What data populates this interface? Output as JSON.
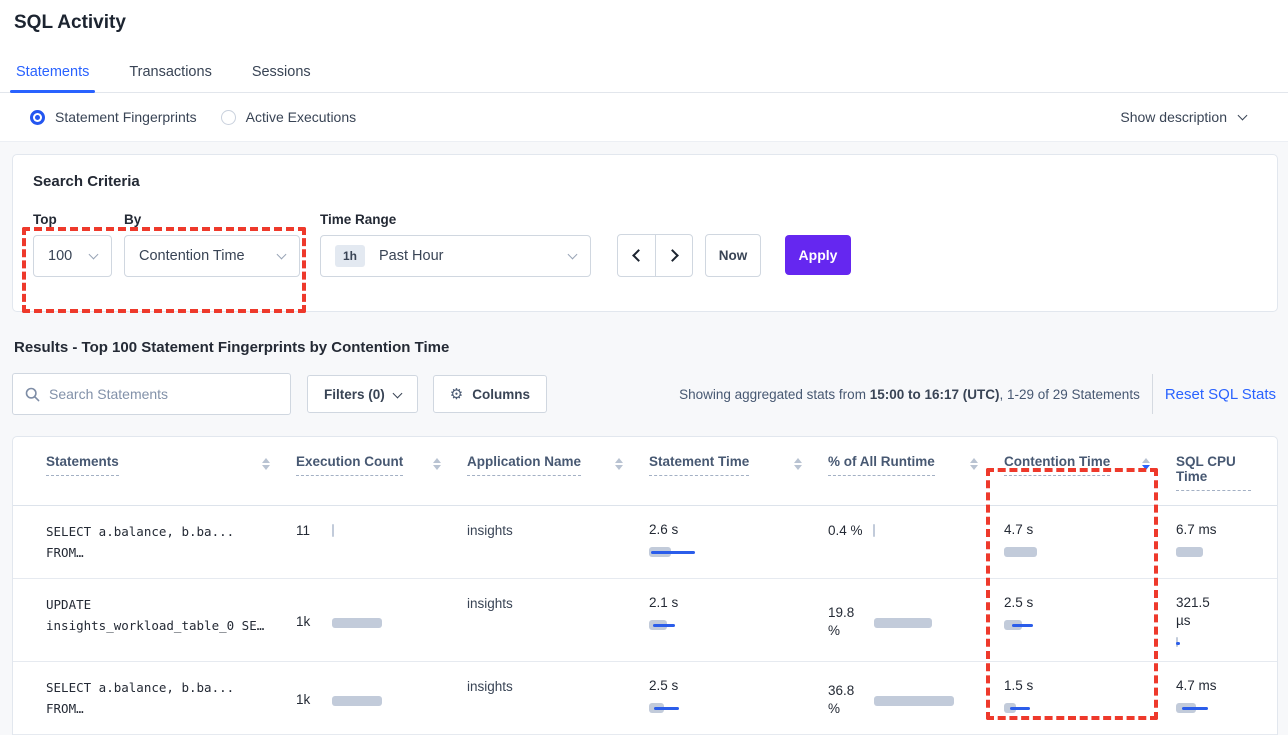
{
  "page_title": "SQL Activity",
  "tabs": [
    {
      "label": "Statements",
      "active": true
    },
    {
      "label": "Transactions",
      "active": false
    },
    {
      "label": "Sessions",
      "active": false
    }
  ],
  "toggle": {
    "options": [
      {
        "label": "Statement Fingerprints",
        "selected": true
      },
      {
        "label": "Active Executions",
        "selected": false
      }
    ],
    "show_description": "Show description"
  },
  "search_criteria": {
    "heading": "Search Criteria",
    "top": {
      "label": "Top",
      "value": "100"
    },
    "by": {
      "label": "By",
      "value": "Contention Time"
    },
    "time_range": {
      "label": "Time Range",
      "badge": "1h",
      "value": "Past Hour"
    },
    "now_label": "Now",
    "apply_label": "Apply"
  },
  "results": {
    "heading": "Results - Top 100 Statement Fingerprints by Contention Time",
    "search_placeholder": "Search Statements",
    "filters_label": "Filters (0)",
    "columns_label": "Columns",
    "showing_prefix": "Showing aggregated stats from ",
    "showing_bold": "15:00 to 16:17 (UTC)",
    "showing_suffix": ", 1-29 of 29 Statements",
    "reset_label": "Reset SQL Stats"
  },
  "table": {
    "headers": [
      {
        "label": "Statements"
      },
      {
        "label": "Execution Count"
      },
      {
        "label": "Application Name"
      },
      {
        "label": "Statement Time"
      },
      {
        "label": "% of All Runtime"
      },
      {
        "label": "Contention Time"
      },
      {
        "label": "SQL CPU Time"
      }
    ],
    "sorted_column": "Contention Time",
    "sort_direction": "desc",
    "rows": [
      {
        "stmt1": "SELECT a.balance, b.ba...",
        "stmt2": "FROM…",
        "exec": "11",
        "app": "insights",
        "stmt_time": "2.6 s",
        "pct": "0.4 %",
        "cont": "4.7 s",
        "cpu": "6.7 ms",
        "bars": {
          "exec": {
            "g": 2,
            "h": 13
          },
          "stmt": {
            "g": 22,
            "b": [
              2,
              44
            ]
          },
          "pct": {
            "g": 2,
            "h": 13
          },
          "cont": {
            "g": 33
          },
          "cpu": {
            "g": 27
          }
        }
      },
      {
        "stmt1": "UPDATE",
        "stmt2": "insights_workload_table_0 SE…",
        "exec": "1k",
        "app": "insights",
        "stmt_time": "2.1 s",
        "pct": "19.8 %",
        "cont": "2.5 s",
        "cpu": "321.5 µs",
        "bars": {
          "exec": {
            "g": 50
          },
          "stmt": {
            "g": 18,
            "b": [
              4,
              22
            ]
          },
          "pct": {
            "g": 58
          },
          "cont": {
            "g": 18,
            "b": [
              8,
              21
            ]
          },
          "cpu": {
            "g": 2,
            "h": 10,
            "b": [
              0,
              4
            ]
          }
        }
      },
      {
        "stmt1": "SELECT a.balance, b.ba...",
        "stmt2": "FROM…",
        "exec": "1k",
        "app": "insights",
        "stmt_time": "2.5 s",
        "pct": "36.8 %",
        "cont": "1.5 s",
        "cpu": "4.7 ms",
        "bars": {
          "exec": {
            "g": 50
          },
          "stmt": {
            "g": 15,
            "b": [
              5,
              25
            ]
          },
          "pct": {
            "g": 80
          },
          "cont": {
            "g": 12,
            "b": [
              6,
              20
            ]
          },
          "cpu": {
            "g": 20,
            "b": [
              6,
              26
            ]
          }
        }
      }
    ]
  },
  "colors": {
    "accent_blue": "#2962ff",
    "apply_purple": "#6527f0",
    "annotation_red": "#ee392b",
    "bar_gray": "#c2cbda",
    "bar_blue": "#2b5dea"
  }
}
